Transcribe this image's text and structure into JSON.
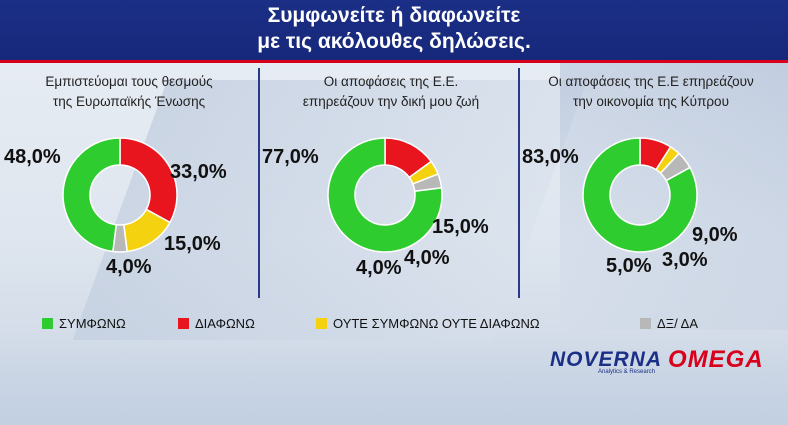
{
  "header": {
    "line1": "Συμφωνείτε ή διαφωνείτε",
    "line2": "με τις ακόλουθες δηλώσεις."
  },
  "colors": {
    "agree": "#2ecc2e",
    "disagree": "#e8141e",
    "neither": "#f5d20f",
    "dk": "#b8b8b8",
    "header_bg": "#1b2f86",
    "accent_red": "#d9001b"
  },
  "chart_data": [
    {
      "type": "pie",
      "title_line1": "Εμπιστεύομαι τους θεσμούς",
      "title_line2": "της Ευρωπαϊκής Ένωσης",
      "categories": [
        "ΣΥΜΦΩΝΩ",
        "ΔΙΑΦΩΝΩ",
        "ΟΥΤΕ ΣΥΜΦΩΝΩ ΟΥΤΕ ΔΙΑΦΩΝΩ",
        "ΔΞ/ ΔΑ"
      ],
      "values": [
        48.0,
        33.0,
        15.0,
        4.0
      ],
      "labels": [
        "48,0%",
        "33,0%",
        "15,0%",
        "4,0%"
      ]
    },
    {
      "type": "pie",
      "title_line1": "Οι αποφάσεις της Ε.Ε.",
      "title_line2": "επηρεάζουν την δική μου ζωή",
      "categories": [
        "ΣΥΜΦΩΝΩ",
        "ΔΙΑΦΩΝΩ",
        "ΟΥΤΕ ΣΥΜΦΩΝΩ ΟΥΤΕ ΔΙΑΦΩΝΩ",
        "ΔΞ/ ΔΑ"
      ],
      "values": [
        77.0,
        15.0,
        4.0,
        4.0
      ],
      "labels": [
        "77,0%",
        "15,0%",
        "4,0%",
        "4,0%"
      ]
    },
    {
      "type": "pie",
      "title_line1": "Οι αποφάσεις της Ε.Ε επηρεάζουν",
      "title_line2": "την οικονομία της Κύπρου",
      "categories": [
        "ΣΥΜΦΩΝΩ",
        "ΔΙΑΦΩΝΩ",
        "ΟΥΤΕ ΣΥΜΦΩΝΩ ΟΥΤΕ ΔΙΑΦΩΝΩ",
        "ΔΞ/ ΔΑ"
      ],
      "values": [
        83.0,
        9.0,
        3.0,
        5.0
      ],
      "labels": [
        "83,0%",
        "9,0%",
        "3,0%",
        "5,0%"
      ]
    }
  ],
  "legend": {
    "placement": "bottom",
    "items": [
      {
        "label": "ΣΥΜΦΩΝΩ"
      },
      {
        "label": "ΔΙΑΦΩΝΩ"
      },
      {
        "label": "ΟΥΤΕ ΣΥΜΦΩΝΩ ΟΥΤΕ ΔΙΑΦΩΝΩ"
      },
      {
        "label": "ΔΞ/ ΔΑ"
      }
    ]
  },
  "logos": {
    "noverna": "NOVERNA",
    "noverna_sub": "Analytics & Research",
    "omega": "OMEGA"
  }
}
